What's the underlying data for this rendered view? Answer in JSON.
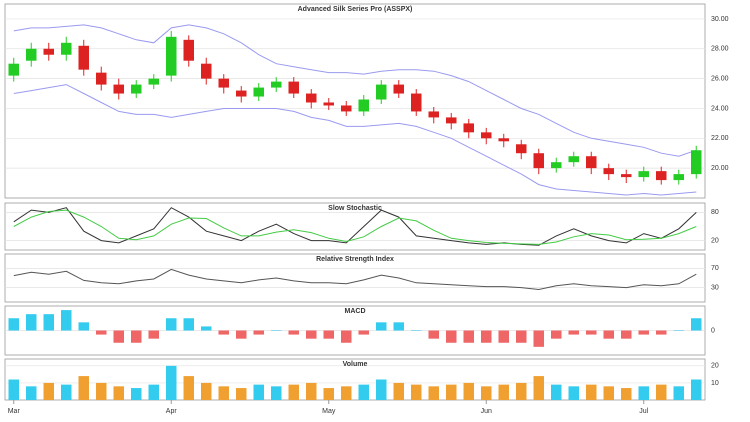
{
  "chart_data": [
    {
      "type": "candlestick",
      "title": "Advanced Silk Series Pro (ASSPX)",
      "categories": [
        "Mar",
        null,
        null,
        null,
        null,
        null,
        null,
        null,
        null,
        "Apr",
        null,
        null,
        null,
        null,
        null,
        null,
        null,
        null,
        "May",
        null,
        null,
        null,
        null,
        null,
        null,
        null,
        null,
        "Jun",
        null,
        null,
        null,
        null,
        null,
        null,
        null,
        null,
        "Jul",
        null,
        null,
        null
      ],
      "open": [
        26.2,
        27.2,
        28.0,
        27.6,
        28.2,
        26.4,
        25.6,
        25.0,
        25.6,
        26.2,
        28.6,
        27.0,
        26.0,
        25.2,
        24.8,
        25.4,
        25.8,
        25.0,
        24.4,
        24.2,
        23.8,
        24.6,
        25.6,
        25.0,
        23.8,
        23.4,
        23.0,
        22.4,
        22.0,
        21.6,
        21.0,
        20.0,
        20.4,
        20.8,
        20.0,
        19.6,
        19.4,
        19.8,
        19.2,
        19.6
      ],
      "high": [
        27.4,
        28.4,
        28.4,
        28.8,
        28.6,
        26.8,
        26.0,
        25.9,
        26.3,
        29.2,
        28.9,
        27.4,
        26.3,
        25.5,
        25.7,
        26.1,
        26.1,
        25.3,
        24.7,
        24.5,
        24.9,
        25.9,
        25.9,
        25.3,
        24.1,
        23.7,
        23.3,
        22.7,
        22.3,
        21.9,
        21.3,
        20.7,
        21.1,
        21.1,
        20.3,
        19.9,
        20.1,
        20.1,
        19.9,
        21.5
      ],
      "low": [
        25.8,
        26.8,
        27.2,
        27.2,
        26.2,
        25.2,
        24.6,
        24.7,
        25.3,
        25.8,
        26.8,
        25.6,
        25.0,
        24.4,
        24.5,
        25.1,
        24.7,
        24.0,
        23.9,
        23.5,
        23.5,
        24.3,
        24.7,
        23.5,
        23.0,
        22.6,
        22.0,
        21.6,
        21.4,
        20.6,
        19.6,
        19.7,
        20.1,
        19.6,
        19.2,
        19.0,
        19.1,
        18.9,
        18.9,
        19.3
      ],
      "close": [
        27.0,
        28.0,
        27.6,
        28.4,
        26.6,
        25.6,
        25.0,
        25.6,
        26.0,
        28.8,
        27.2,
        26.0,
        25.4,
        24.8,
        25.4,
        25.8,
        25.0,
        24.4,
        24.2,
        23.8,
        24.6,
        25.6,
        25.0,
        23.8,
        23.4,
        23.0,
        22.4,
        22.0,
        21.8,
        21.0,
        20.0,
        20.4,
        20.8,
        20.0,
        19.6,
        19.4,
        19.8,
        19.2,
        19.6,
        21.2
      ],
      "series": [
        {
          "color": "#9a9af0",
          "values": [
            29.2,
            29.4,
            29.4,
            29.5,
            29.6,
            29.4,
            29.0,
            28.6,
            28.4,
            29.4,
            29.6,
            29.4,
            29.0,
            28.4,
            27.6,
            27.0,
            26.8,
            26.6,
            26.4,
            26.4,
            26.3,
            26.5,
            26.6,
            26.6,
            26.5,
            26.2,
            25.8,
            25.2,
            24.6,
            24.0,
            23.6,
            23.0,
            22.4,
            22.0,
            21.8,
            21.6,
            21.4,
            21.0,
            20.8,
            21.2
          ]
        },
        {
          "color": "#9a9af0",
          "values": [
            25.0,
            25.2,
            25.4,
            25.6,
            25.0,
            24.4,
            23.8,
            23.6,
            23.6,
            23.4,
            23.6,
            23.8,
            24.0,
            24.0,
            24.0,
            24.0,
            23.8,
            23.4,
            23.2,
            22.8,
            22.8,
            22.9,
            23.0,
            22.8,
            22.4,
            22.0,
            21.4,
            20.8,
            20.2,
            19.6,
            18.9,
            18.6,
            18.5,
            18.4,
            18.3,
            18.2,
            18.3,
            18.2,
            18.3,
            18.4
          ]
        }
      ],
      "up_color": "#22cc22",
      "down_color": "#dd2222",
      "ylim": [
        18,
        31
      ],
      "yticks": [
        {
          "value": 20,
          "label": "20.00"
        },
        {
          "value": 22,
          "label": "22.00"
        },
        {
          "value": 24,
          "label": "24.00"
        },
        {
          "value": 26,
          "label": "26.00"
        },
        {
          "value": 28,
          "label": "28.00"
        },
        {
          "value": 30,
          "label": "30.00"
        }
      ],
      "grid": true
    },
    {
      "type": "line",
      "title": "Slow Stochastic",
      "ylim": [
        0,
        100
      ],
      "yticks": [
        20,
        80
      ],
      "grid": true,
      "series": [
        {
          "color": "#333333",
          "values": [
            60,
            85,
            80,
            90,
            40,
            20,
            15,
            30,
            45,
            90,
            70,
            40,
            30,
            20,
            40,
            55,
            35,
            20,
            20,
            15,
            50,
            85,
            70,
            30,
            25,
            20,
            15,
            12,
            15,
            12,
            10,
            30,
            45,
            30,
            20,
            15,
            35,
            25,
            45,
            80
          ]
        },
        {
          "color": "#44cc44",
          "values": [
            50,
            70,
            82,
            85,
            70,
            50,
            25,
            22,
            30,
            55,
            68,
            67,
            47,
            30,
            30,
            38,
            43,
            37,
            25,
            18,
            28,
            50,
            68,
            62,
            42,
            25,
            20,
            16,
            14,
            13,
            12,
            17,
            28,
            35,
            32,
            22,
            23,
            25,
            35,
            50
          ]
        }
      ]
    },
    {
      "type": "line",
      "title": "Relative Strength Index",
      "ylim": [
        0,
        100
      ],
      "yticks": [
        30,
        70
      ],
      "grid": true,
      "series": [
        {
          "color": "#555555",
          "values": [
            55,
            62,
            58,
            64,
            45,
            40,
            38,
            44,
            48,
            68,
            56,
            48,
            44,
            40,
            46,
            50,
            44,
            40,
            40,
            38,
            46,
            56,
            50,
            40,
            38,
            36,
            34,
            32,
            32,
            30,
            26,
            34,
            38,
            34,
            32,
            30,
            36,
            34,
            38,
            58
          ]
        }
      ]
    },
    {
      "type": "bar",
      "title": "MACD",
      "ylim": [
        -0.6,
        0.6
      ],
      "yticks": [
        0
      ],
      "grid": true,
      "up_color": "#33ccee",
      "down_color": "#ee6666",
      "values": [
        0.3,
        0.4,
        0.4,
        0.5,
        0.2,
        -0.1,
        -0.3,
        -0.3,
        -0.2,
        0.3,
        0.3,
        0.1,
        -0.1,
        -0.2,
        -0.1,
        0.0,
        -0.1,
        -0.2,
        -0.2,
        -0.3,
        -0.1,
        0.2,
        0.2,
        0.0,
        -0.2,
        -0.3,
        -0.3,
        -0.3,
        -0.3,
        -0.3,
        -0.4,
        -0.2,
        -0.1,
        -0.1,
        -0.2,
        -0.2,
        -0.1,
        -0.1,
        0.0,
        0.3
      ]
    },
    {
      "type": "bar",
      "title": "Volume",
      "ylim": [
        0,
        24
      ],
      "yticks": [
        10,
        20
      ],
      "grid": true,
      "up_color": "#33ccee",
      "down_color": "#f0a030",
      "values": [
        12,
        8,
        10,
        9,
        14,
        10,
        8,
        7,
        9,
        20,
        14,
        10,
        8,
        7,
        9,
        8,
        9,
        10,
        7,
        8,
        9,
        12,
        10,
        9,
        8,
        9,
        10,
        8,
        9,
        10,
        14,
        9,
        8,
        9,
        8,
        7,
        8,
        9,
        8,
        12
      ]
    }
  ]
}
